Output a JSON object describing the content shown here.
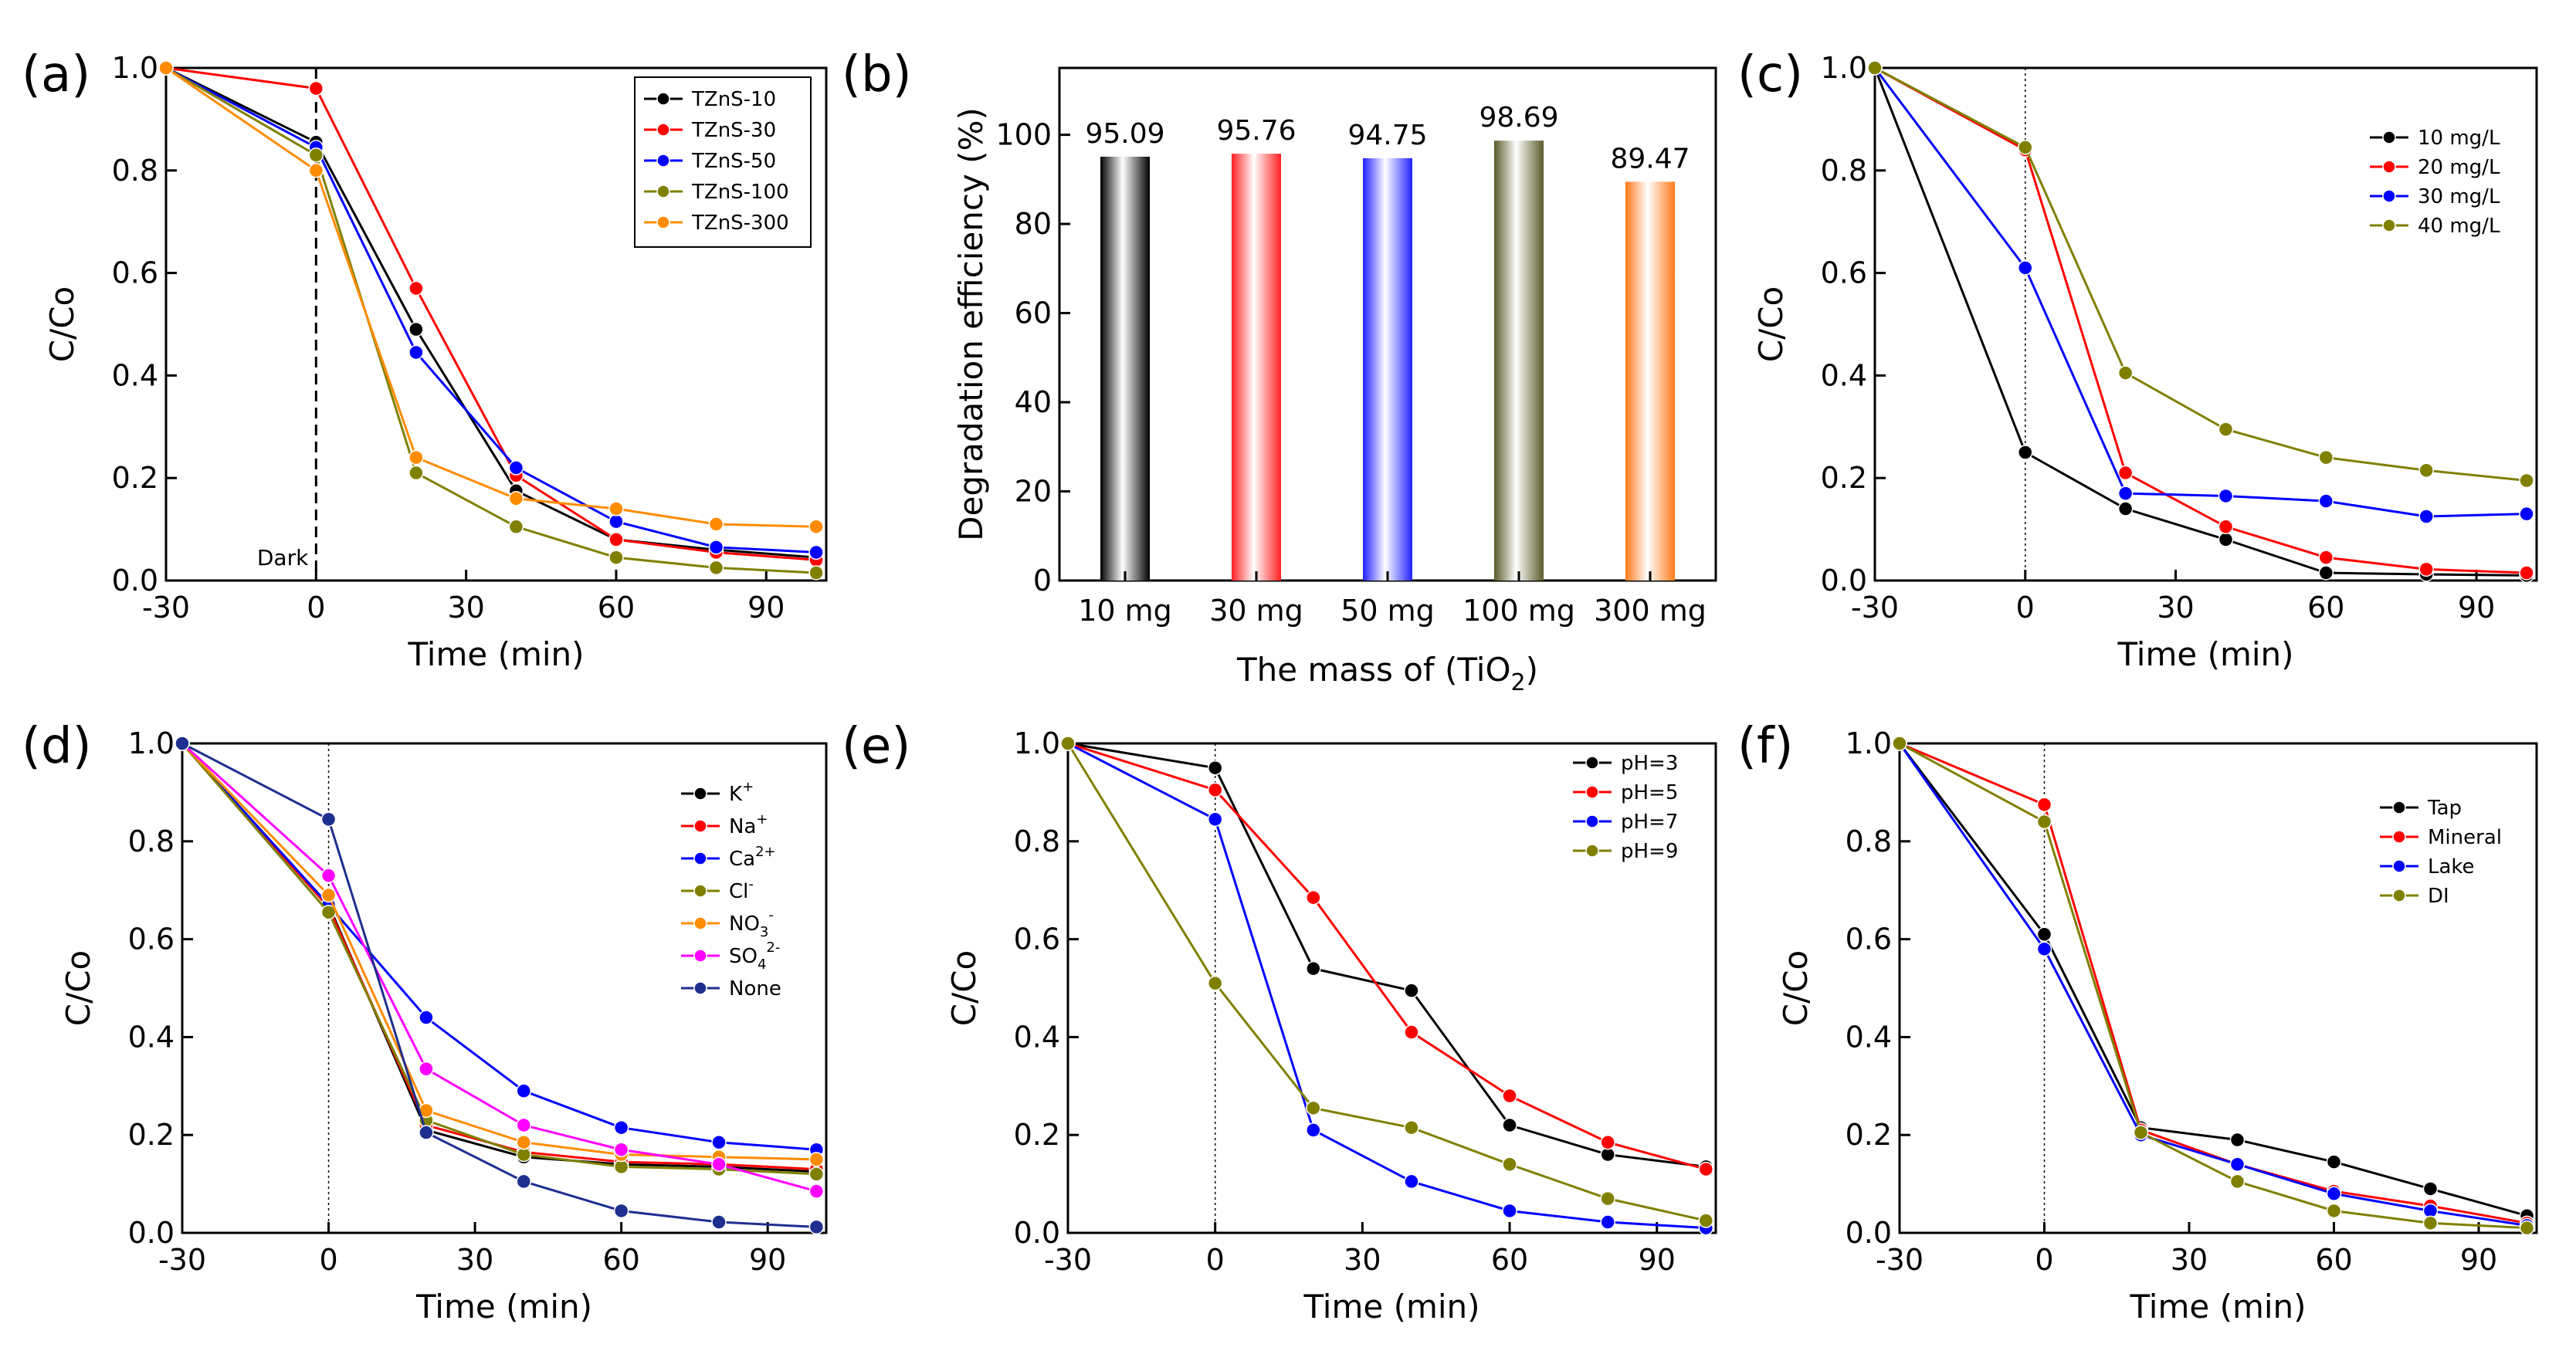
{
  "figure": {
    "panels": [
      "(a)",
      "(b)",
      "(c)",
      "(d)",
      "(e)",
      "(f)"
    ]
  },
  "chart_data": [
    {
      "id": "a",
      "panel_label": "(a)",
      "type": "line",
      "xlabel": "Time (min)",
      "ylabel": "C/Co",
      "xlim": [
        -30,
        102
      ],
      "ylim": [
        0,
        1.0
      ],
      "xticks": [
        -30,
        0,
        30,
        60,
        90
      ],
      "xtick_labels": [
        "-30",
        "0",
        "30",
        "60",
        "90"
      ],
      "yticks": [
        0,
        0.2,
        0.4,
        0.6,
        0.8,
        1.0
      ],
      "ytick_labels": [
        "0.0",
        "0.2",
        "0.4",
        "0.6",
        "0.8",
        "1.0"
      ],
      "x": [
        -30,
        0,
        20,
        40,
        60,
        80,
        100
      ],
      "dark_line_x": 0,
      "dark_line_style": "dashed",
      "annotation": "Dark",
      "legend_position": "top-right",
      "series": [
        {
          "name": "TZnS-10",
          "color": "#000000",
          "values": [
            1.0,
            0.855,
            0.49,
            0.175,
            0.08,
            0.06,
            0.045
          ]
        },
        {
          "name": "TZnS-30",
          "color": "#ff0000",
          "values": [
            1.0,
            0.96,
            0.57,
            0.205,
            0.08,
            0.055,
            0.04
          ]
        },
        {
          "name": "TZnS-50",
          "color": "#0000ff",
          "values": [
            1.0,
            0.845,
            0.445,
            0.22,
            0.115,
            0.065,
            0.055
          ]
        },
        {
          "name": "TZnS-100",
          "color": "#808000",
          "values": [
            1.0,
            0.83,
            0.21,
            0.105,
            0.045,
            0.025,
            0.015
          ]
        },
        {
          "name": "TZnS-300",
          "color": "#ff8c00",
          "values": [
            1.0,
            0.8,
            0.24,
            0.16,
            0.14,
            0.11,
            0.105
          ]
        }
      ]
    },
    {
      "id": "b",
      "panel_label": "(b)",
      "type": "bar",
      "xlabel": "The mass of (TiO",
      "xlabel_sub": "2",
      "xlabel_end": ")",
      "ylabel": "Degradation efficiency (%)",
      "ylim": [
        0,
        115
      ],
      "yticks": [
        0,
        20,
        40,
        60,
        80,
        100
      ],
      "ytick_labels": [
        "0",
        "20",
        "40",
        "60",
        "80",
        "100"
      ],
      "categories": [
        "10 mg",
        "30 mg",
        "50 mg",
        "100 mg",
        "300 mg"
      ],
      "values": [
        95.09,
        95.76,
        94.75,
        98.69,
        89.47
      ],
      "value_labels": [
        "95.09",
        "95.76",
        "94.75",
        "98.69",
        "89.47"
      ],
      "colors": [
        "#000000",
        "#ff2020",
        "#2020ff",
        "#5a5a2a",
        "#ff7a1a"
      ]
    },
    {
      "id": "c",
      "panel_label": "(c)",
      "type": "line",
      "xlabel": "Time (min)",
      "ylabel": "C/Co",
      "xlim": [
        -30,
        102
      ],
      "ylim": [
        0,
        1.0
      ],
      "xticks": [
        -30,
        0,
        30,
        60,
        90
      ],
      "xtick_labels": [
        "-30",
        "0",
        "30",
        "60",
        "90"
      ],
      "yticks": [
        0,
        0.2,
        0.4,
        0.6,
        0.8,
        1.0
      ],
      "ytick_labels": [
        "0.0",
        "0.2",
        "0.4",
        "0.6",
        "0.8",
        "1.0"
      ],
      "x": [
        -30,
        0,
        20,
        40,
        60,
        80,
        100
      ],
      "dark_line_x": 0,
      "dark_line_style": "dotted",
      "legend_position": "top-right",
      "series": [
        {
          "name": "10 mg/L",
          "color": "#000000",
          "values": [
            1.0,
            0.25,
            0.14,
            0.08,
            0.015,
            0.012,
            0.01
          ]
        },
        {
          "name": "20 mg/L",
          "color": "#ff0000",
          "values": [
            1.0,
            0.84,
            0.21,
            0.105,
            0.045,
            0.022,
            0.015
          ]
        },
        {
          "name": "30 mg/L",
          "color": "#0000ff",
          "values": [
            1.0,
            0.61,
            0.17,
            0.165,
            0.155,
            0.125,
            0.13
          ]
        },
        {
          "name": "40 mg/L",
          "color": "#808000",
          "values": [
            1.0,
            0.845,
            0.405,
            0.295,
            0.24,
            0.215,
            0.195
          ]
        }
      ]
    },
    {
      "id": "d",
      "panel_label": "(d)",
      "type": "line",
      "xlabel": "Time (min)",
      "ylabel": "C/Co",
      "xlim": [
        -30,
        102
      ],
      "ylim": [
        0,
        1.0
      ],
      "xticks": [
        -30,
        0,
        30,
        60,
        90
      ],
      "xtick_labels": [
        "-30",
        "0",
        "30",
        "60",
        "90"
      ],
      "yticks": [
        0,
        0.2,
        0.4,
        0.6,
        0.8,
        1.0
      ],
      "ytick_labels": [
        "0.0",
        "0.2",
        "0.4",
        "0.6",
        "0.8",
        "1.0"
      ],
      "x": [
        -30,
        0,
        20,
        40,
        60,
        80,
        100
      ],
      "dark_line_x": 0,
      "dark_line_style": "dotted",
      "legend_position": "top-right",
      "series": [
        {
          "name": "K",
          "sup": "+",
          "sub": "",
          "color": "#000000",
          "values": [
            1.0,
            0.67,
            0.21,
            0.155,
            0.14,
            0.135,
            0.125
          ]
        },
        {
          "name": "Na",
          "sup": "+",
          "sub": "",
          "color": "#ff0000",
          "values": [
            1.0,
            0.665,
            0.22,
            0.165,
            0.145,
            0.14,
            0.13
          ]
        },
        {
          "name": "Ca",
          "sup": "2+",
          "sub": "",
          "color": "#0000ff",
          "values": [
            1.0,
            0.67,
            0.44,
            0.29,
            0.215,
            0.185,
            0.17
          ]
        },
        {
          "name": "Cl",
          "sup": "-",
          "sub": "",
          "color": "#808000",
          "values": [
            1.0,
            0.655,
            0.23,
            0.16,
            0.135,
            0.13,
            0.12
          ]
        },
        {
          "name": "NO",
          "sup": "-",
          "sub": "3",
          "color": "#ff8c00",
          "values": [
            1.0,
            0.69,
            0.25,
            0.185,
            0.16,
            0.155,
            0.15
          ]
        },
        {
          "name": "SO",
          "sup": "2-",
          "sub": "4",
          "color": "#ff00ff",
          "values": [
            1.0,
            0.73,
            0.335,
            0.22,
            0.17,
            0.14,
            0.085
          ]
        },
        {
          "name": "None",
          "color": "#1e2f8f",
          "values": [
            1.0,
            0.845,
            0.205,
            0.105,
            0.045,
            0.022,
            0.012
          ]
        }
      ]
    },
    {
      "id": "e",
      "panel_label": "(e)",
      "type": "line",
      "xlabel": "Time (min)",
      "ylabel": "C/Co",
      "xlim": [
        -30,
        102
      ],
      "ylim": [
        0,
        1.0
      ],
      "xticks": [
        -30,
        0,
        30,
        60,
        90
      ],
      "xtick_labels": [
        "-30",
        "0",
        "30",
        "60",
        "90"
      ],
      "yticks": [
        0,
        0.2,
        0.4,
        0.6,
        0.8,
        1.0
      ],
      "ytick_labels": [
        "0.0",
        "0.2",
        "0.4",
        "0.6",
        "0.8",
        "1.0"
      ],
      "x": [
        -30,
        0,
        20,
        40,
        60,
        80,
        100
      ],
      "dark_line_x": 0,
      "dark_line_style": "dotted",
      "legend_position": "top-right",
      "series": [
        {
          "name": "pH=3",
          "color": "#000000",
          "values": [
            1.0,
            0.95,
            0.54,
            0.495,
            0.22,
            0.16,
            0.135
          ]
        },
        {
          "name": "pH=5",
          "color": "#ff0000",
          "values": [
            1.0,
            0.905,
            0.685,
            0.41,
            0.28,
            0.185,
            0.13
          ]
        },
        {
          "name": "pH=7",
          "color": "#0000ff",
          "values": [
            1.0,
            0.845,
            0.21,
            0.105,
            0.045,
            0.022,
            0.01
          ]
        },
        {
          "name": "pH=9",
          "color": "#808000",
          "values": [
            1.0,
            0.51,
            0.255,
            0.215,
            0.14,
            0.07,
            0.025
          ]
        }
      ]
    },
    {
      "id": "f",
      "panel_label": "(f)",
      "type": "line",
      "xlabel": "Time (min)",
      "ylabel": "C/Co",
      "xlim": [
        -30,
        102
      ],
      "ylim": [
        0,
        1.0
      ],
      "xticks": [
        -30,
        0,
        30,
        60,
        90
      ],
      "xtick_labels": [
        "-30",
        "0",
        "30",
        "60",
        "90"
      ],
      "yticks": [
        0,
        0.2,
        0.4,
        0.6,
        0.8,
        1.0
      ],
      "ytick_labels": [
        "0.0",
        "0.2",
        "0.4",
        "0.6",
        "0.8",
        "1.0"
      ],
      "x": [
        -30,
        0,
        20,
        40,
        60,
        80,
        100
      ],
      "dark_line_x": 0,
      "dark_line_style": "dotted",
      "legend_position": "top-right",
      "series": [
        {
          "name": "Tap",
          "color": "#000000",
          "values": [
            1.0,
            0.61,
            0.215,
            0.19,
            0.145,
            0.09,
            0.035
          ]
        },
        {
          "name": "Mineral",
          "color": "#ff0000",
          "values": [
            1.0,
            0.875,
            0.21,
            0.14,
            0.085,
            0.055,
            0.02
          ]
        },
        {
          "name": "Lake",
          "color": "#0000ff",
          "values": [
            1.0,
            0.58,
            0.2,
            0.14,
            0.08,
            0.045,
            0.015
          ]
        },
        {
          "name": "DI",
          "color": "#808000",
          "values": [
            1.0,
            0.84,
            0.205,
            0.105,
            0.045,
            0.02,
            0.01
          ]
        }
      ]
    }
  ]
}
